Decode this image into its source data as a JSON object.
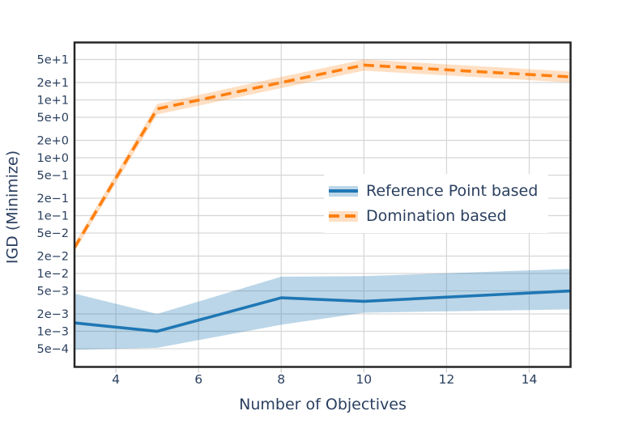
{
  "chart_data": {
    "type": "line",
    "title": "",
    "xlabel": "Number of Objectives",
    "ylabel": "IGD (Minimize)",
    "x": [
      3,
      5,
      8,
      10,
      15
    ],
    "series": [
      {
        "name": "Reference Point based",
        "line_style": "solid",
        "color": "#1f77b4",
        "band_color": "rgba(31,119,180,0.30)",
        "values": [
          0.0014,
          0.001,
          0.0038,
          0.0033,
          0.005
        ],
        "band_low": [
          0.00048,
          0.00052,
          0.0013,
          0.0021,
          0.0024
        ],
        "band_high": [
          0.0045,
          0.002,
          0.0088,
          0.009,
          0.012
        ]
      },
      {
        "name": "Domination based",
        "line_style": "dashed",
        "color": "#ff7f0e",
        "band_color": "rgba(255,127,14,0.25)",
        "values": [
          0.028,
          7.0,
          20,
          40,
          25
        ],
        "band_low": [
          0.024,
          5.6,
          16,
          32,
          20
        ],
        "band_high": [
          0.033,
          8.5,
          25,
          50,
          31
        ]
      }
    ],
    "x_ticks": [
      {
        "label": "4",
        "value": 4
      },
      {
        "label": "6",
        "value": 6
      },
      {
        "label": "8",
        "value": 8
      },
      {
        "label": "10",
        "value": 10
      },
      {
        "label": "12",
        "value": 12
      },
      {
        "label": "14",
        "value": 14
      }
    ],
    "y_ticks": [
      {
        "label": "5e+1",
        "value": 50
      },
      {
        "label": "2e+1",
        "value": 20
      },
      {
        "label": "1e+1",
        "value": 10
      },
      {
        "label": "5e+0",
        "value": 5
      },
      {
        "label": "2e+0",
        "value": 2
      },
      {
        "label": "1e+0",
        "value": 1
      },
      {
        "label": "5e−1",
        "value": 0.5
      },
      {
        "label": "2e−1",
        "value": 0.2
      },
      {
        "label": "1e−1",
        "value": 0.1
      },
      {
        "label": "5e−2",
        "value": 0.05
      },
      {
        "label": "2e−2",
        "value": 0.02
      },
      {
        "label": "1e−2",
        "value": 0.01
      },
      {
        "label": "5e−3",
        "value": 0.005
      },
      {
        "label": "2e−3",
        "value": 0.002
      },
      {
        "label": "1e−3",
        "value": 0.001
      },
      {
        "label": "5e−4",
        "value": 0.0005
      }
    ],
    "xlim": [
      3,
      15
    ],
    "ylim_log10": [
      -3.615,
      1.993
    ],
    "y_scale": "log",
    "grid": true,
    "legend_position": "center-right-inside"
  },
  "colors": {
    "text": "#2a3f5f",
    "grid": "#d6d6d6",
    "tick": "#c9c9c9",
    "spine": "#262626",
    "background": "#ffffff"
  }
}
